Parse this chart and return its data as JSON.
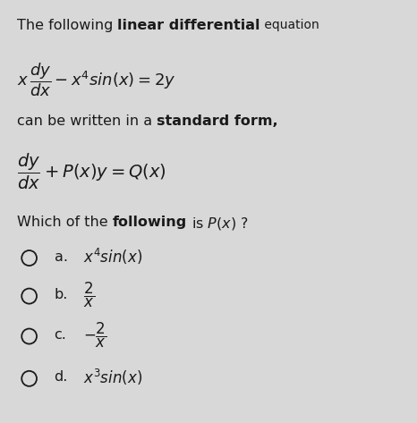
{
  "bg_color": "#d8d8d8",
  "text_color": "#1a1a1a",
  "title_part1": "The following ",
  "title_part2": "linear differential",
  "title_part3": " equation",
  "eq1": "$x\\,\\dfrac{dy}{dx} - x^4sin(x) = 2y$",
  "line2_part1": "can be written in a ",
  "line2_part2": "standard form,",
  "eq2": "$\\dfrac{dy}{dx} + P(x)y = Q(x)$",
  "question_part1": "Which of the ",
  "question_part2": "following",
  "question_part3": " is $P(x)$ ?",
  "opt_letters": [
    "a.",
    "b.",
    "c.",
    "d."
  ],
  "opt_math": [
    "$x^4 sin(x)$",
    "$\\dfrac{2}{x}$",
    "$-\\dfrac{2}{x}$",
    "$x^3 sin(x)$"
  ],
  "font_size": 11.5,
  "font_size_eq": 12,
  "circle_r": 0.018
}
